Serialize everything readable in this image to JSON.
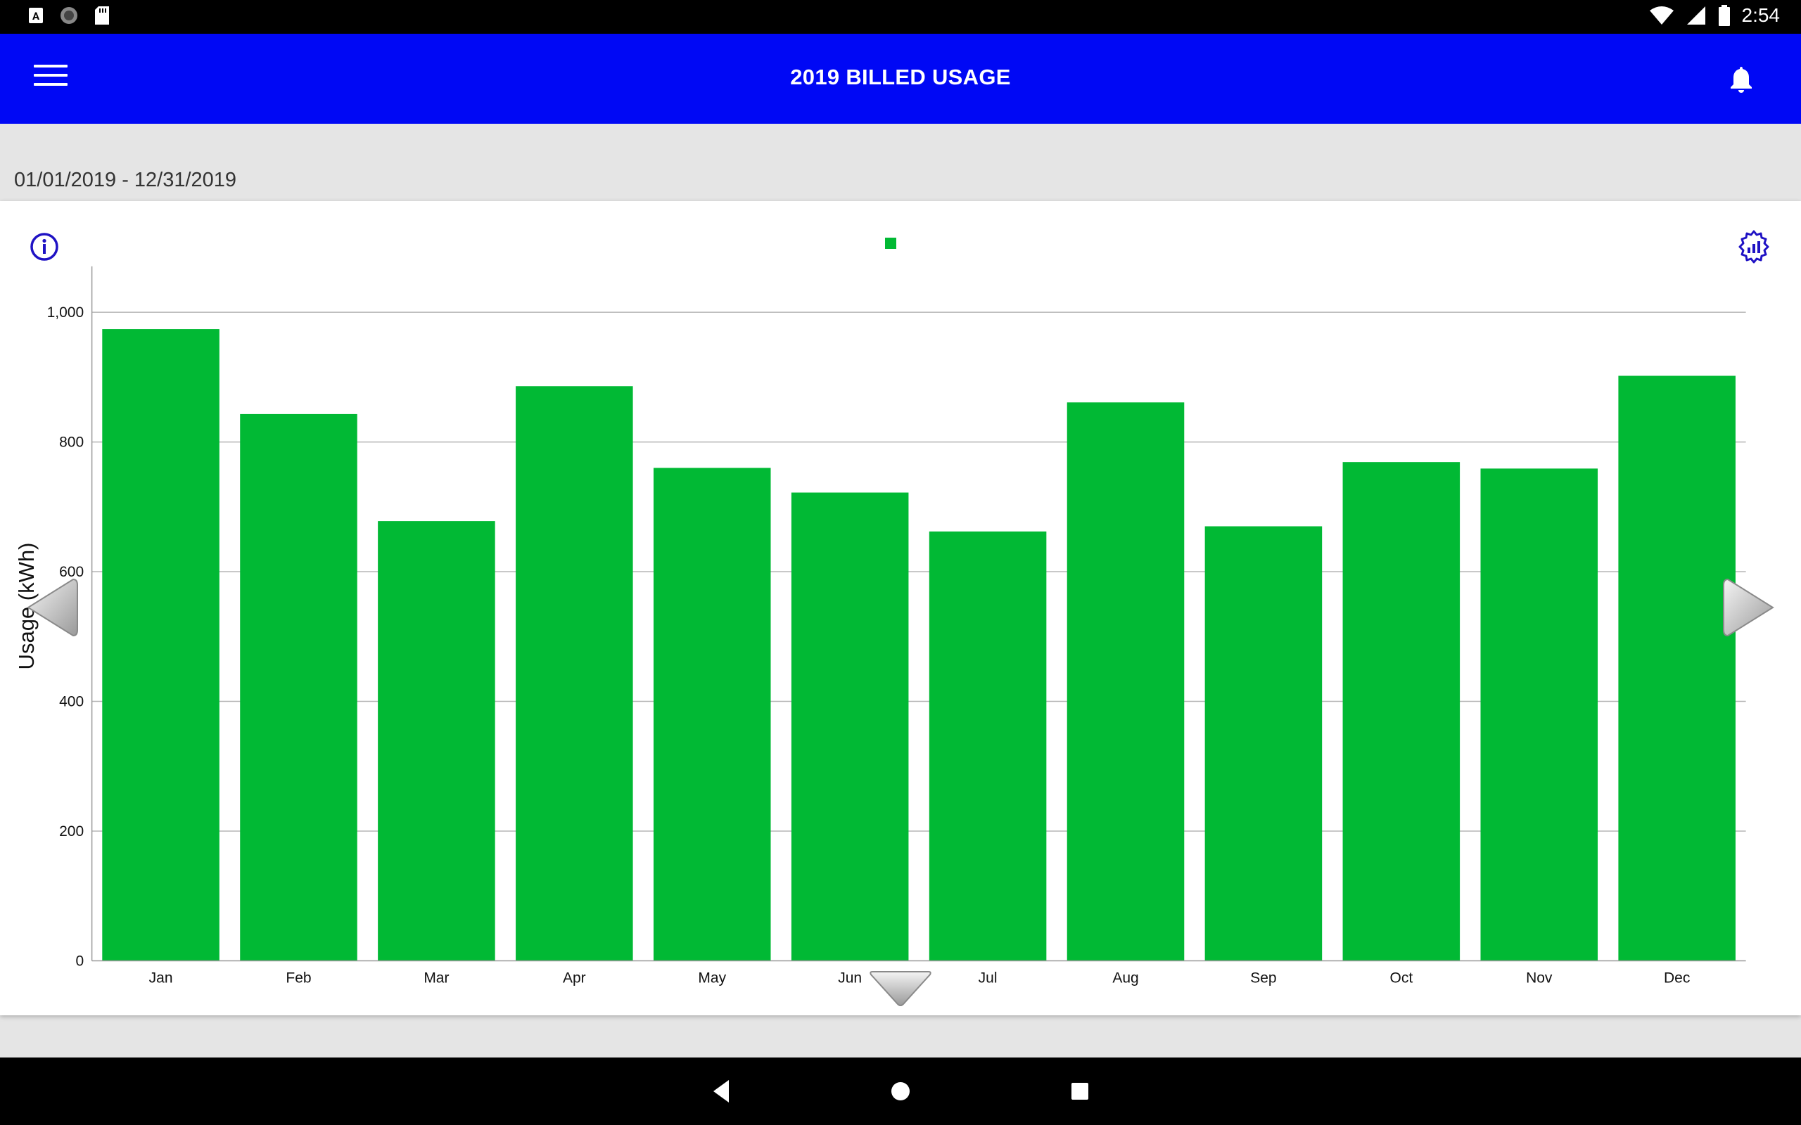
{
  "status_bar": {
    "time": "2:54",
    "left_icons": [
      "a-letter-icon",
      "circle-status-icon",
      "sd-card-icon"
    ],
    "right_icons": [
      "wifi-icon",
      "signal-icon",
      "battery-icon"
    ]
  },
  "app_bar": {
    "title": "2019 BILLED USAGE",
    "menu_icon": "hamburger-menu-icon",
    "notification_icon": "bell-icon"
  },
  "date_range": "01/01/2019 - 12/31/2019",
  "colors": {
    "app_bar": "#0008f5",
    "bar": "#01b934",
    "icon_accent": "#1f12c4"
  },
  "chart_data": {
    "type": "bar",
    "categories": [
      "Jan",
      "Feb",
      "Mar",
      "Apr",
      "May",
      "Jun",
      "Jul",
      "Aug",
      "Sep",
      "Oct",
      "Nov",
      "Dec"
    ],
    "series": [
      {
        "values": [
          974,
          843,
          678,
          886,
          760,
          722,
          662,
          861,
          670,
          769,
          759,
          902
        ]
      }
    ],
    "ylabel": "Usage (kWh)",
    "xlabel": "",
    "ylim": [
      0,
      1000
    ],
    "yticks": [
      0,
      200,
      400,
      600,
      800,
      1000
    ],
    "ytick_labels": [
      "0",
      "200",
      "400",
      "600",
      "800",
      "1,000"
    ],
    "grid": true,
    "legend": "top-center"
  },
  "navigation": {
    "prev_icon": "left-arrow-icon",
    "next_icon": "right-arrow-icon",
    "expand_icon": "down-arrow-icon"
  },
  "system_nav": [
    "back-icon",
    "home-icon",
    "recents-icon"
  ]
}
